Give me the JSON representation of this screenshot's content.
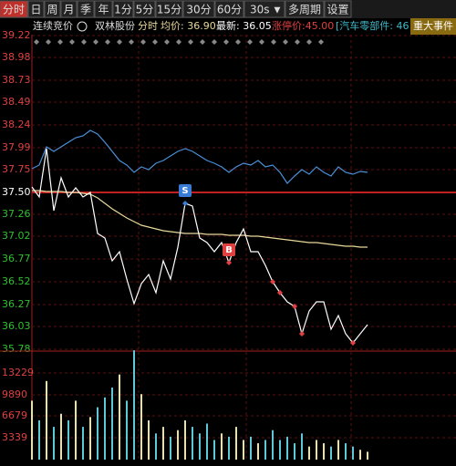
{
  "toolbar": {
    "tabs": [
      "分时",
      "日",
      "周",
      "月",
      "季",
      "年",
      "1分",
      "5分",
      "15分",
      "30分",
      "60分",
      "30s",
      "多周期",
      "设置"
    ]
  },
  "info": {
    "status": "连续竞价",
    "stock": "双林股份",
    "mode": "分时",
    "avg": "均价: 36.90",
    "latest": "最新: 36.05",
    "limit_up": "涨停价:45.00",
    "sector": "[汽车零部件: 46",
    "events": "重大事件"
  },
  "chart_data": [
    {
      "type": "line",
      "ylim": [
        35.78,
        39.22
      ],
      "yticks": [
        39.22,
        38.98,
        38.73,
        38.49,
        38.24,
        37.99,
        37.75,
        {
          "value": 37.5,
          "label": "37.50"
        },
        37.26,
        37.02,
        36.77,
        36.52,
        36.27,
        36.03,
        35.78
      ],
      "reference_line": 37.5,
      "grid": true,
      "series": [
        {
          "color": "#4a90d9",
          "values": [
            37.76,
            37.8,
            38.0,
            37.95,
            38.0,
            38.05,
            38.1,
            38.12,
            38.18,
            38.14,
            38.05,
            37.95,
            37.85,
            37.8,
            37.72,
            37.78,
            37.75,
            37.82,
            37.85,
            37.9,
            37.95,
            37.98,
            37.95,
            37.9,
            37.85,
            37.82,
            37.78,
            37.72,
            37.78,
            37.82,
            37.8,
            37.85,
            37.78,
            37.8,
            37.72,
            37.6,
            37.68,
            37.75,
            37.7,
            37.78,
            37.72,
            37.68,
            37.78,
            37.72,
            37.7,
            37.73,
            37.72
          ]
        },
        {
          "color": "#e8d89a",
          "values": [
            37.52,
            37.52,
            37.51,
            37.51,
            37.51,
            37.5,
            37.5,
            37.49,
            37.48,
            37.44,
            37.38,
            37.32,
            37.27,
            37.22,
            37.18,
            37.14,
            37.12,
            37.1,
            37.08,
            37.07,
            37.06,
            37.05,
            37.05,
            37.05,
            37.04,
            37.04,
            37.04,
            37.03,
            37.03,
            37.03,
            37.02,
            37.02,
            37.01,
            37.0,
            36.99,
            36.98,
            36.97,
            36.96,
            36.95,
            36.95,
            36.94,
            36.93,
            36.92,
            36.91,
            36.91,
            36.9,
            36.9
          ]
        },
        {
          "color": "#ffffff",
          "values": [
            37.56,
            37.45,
            37.98,
            37.3,
            37.66,
            37.45,
            37.55,
            37.45,
            37.5,
            37.05,
            37.0,
            36.75,
            36.85,
            36.55,
            36.28,
            36.5,
            36.6,
            36.4,
            36.75,
            36.55,
            36.9,
            37.38,
            37.35,
            37.0,
            36.95,
            36.85,
            36.95,
            36.73,
            36.95,
            37.1,
            36.85,
            36.85,
            36.7,
            36.52,
            36.4,
            36.3,
            36.25,
            35.95,
            36.2,
            36.3,
            36.3,
            36.0,
            36.15,
            35.95,
            35.85,
            35.95,
            36.05
          ],
          "signals": [
            null,
            null,
            null,
            null,
            null,
            null,
            null,
            null,
            null,
            null,
            null,
            null,
            null,
            null,
            null,
            null,
            null,
            null,
            null,
            null,
            null,
            "S",
            null,
            null,
            null,
            null,
            null,
            "B",
            null,
            null,
            null,
            null,
            null,
            null,
            null,
            null,
            null,
            null,
            null,
            null,
            null,
            null,
            null,
            null,
            null,
            null,
            null
          ],
          "dots": [
            null,
            null,
            null,
            null,
            null,
            null,
            null,
            null,
            null,
            null,
            null,
            null,
            null,
            null,
            null,
            null,
            null,
            null,
            null,
            null,
            null,
            "#3a7bd5",
            null,
            null,
            null,
            null,
            null,
            "#e04040",
            null,
            null,
            null,
            null,
            null,
            "#e04040",
            "#e04040",
            null,
            "#e04040",
            "#e04040",
            null,
            null,
            null,
            null,
            null,
            null,
            "#e04040",
            null,
            null
          ]
        }
      ]
    },
    {
      "type": "bar",
      "ylim": [
        0,
        16575
      ],
      "yticks": [
        13229,
        9890,
        6679,
        3339
      ],
      "up_color": "#e8e0b0",
      "down_color": "#5fc8d8",
      "values": [
        9000,
        6000,
        12000,
        5000,
        7000,
        6000,
        9000,
        5000,
        6500,
        8000,
        9500,
        11000,
        13000,
        9000,
        16700,
        10000,
        6000,
        4000,
        5000,
        3500,
        4500,
        6000,
        5000,
        4000,
        5500,
        3000,
        4000,
        3500,
        5000,
        3000,
        3500,
        2500,
        3000,
        4500,
        3000,
        3500,
        2500,
        4000,
        2000,
        3000,
        2500,
        2000,
        3000,
        2500,
        2000,
        1500,
        1200
      ]
    }
  ]
}
